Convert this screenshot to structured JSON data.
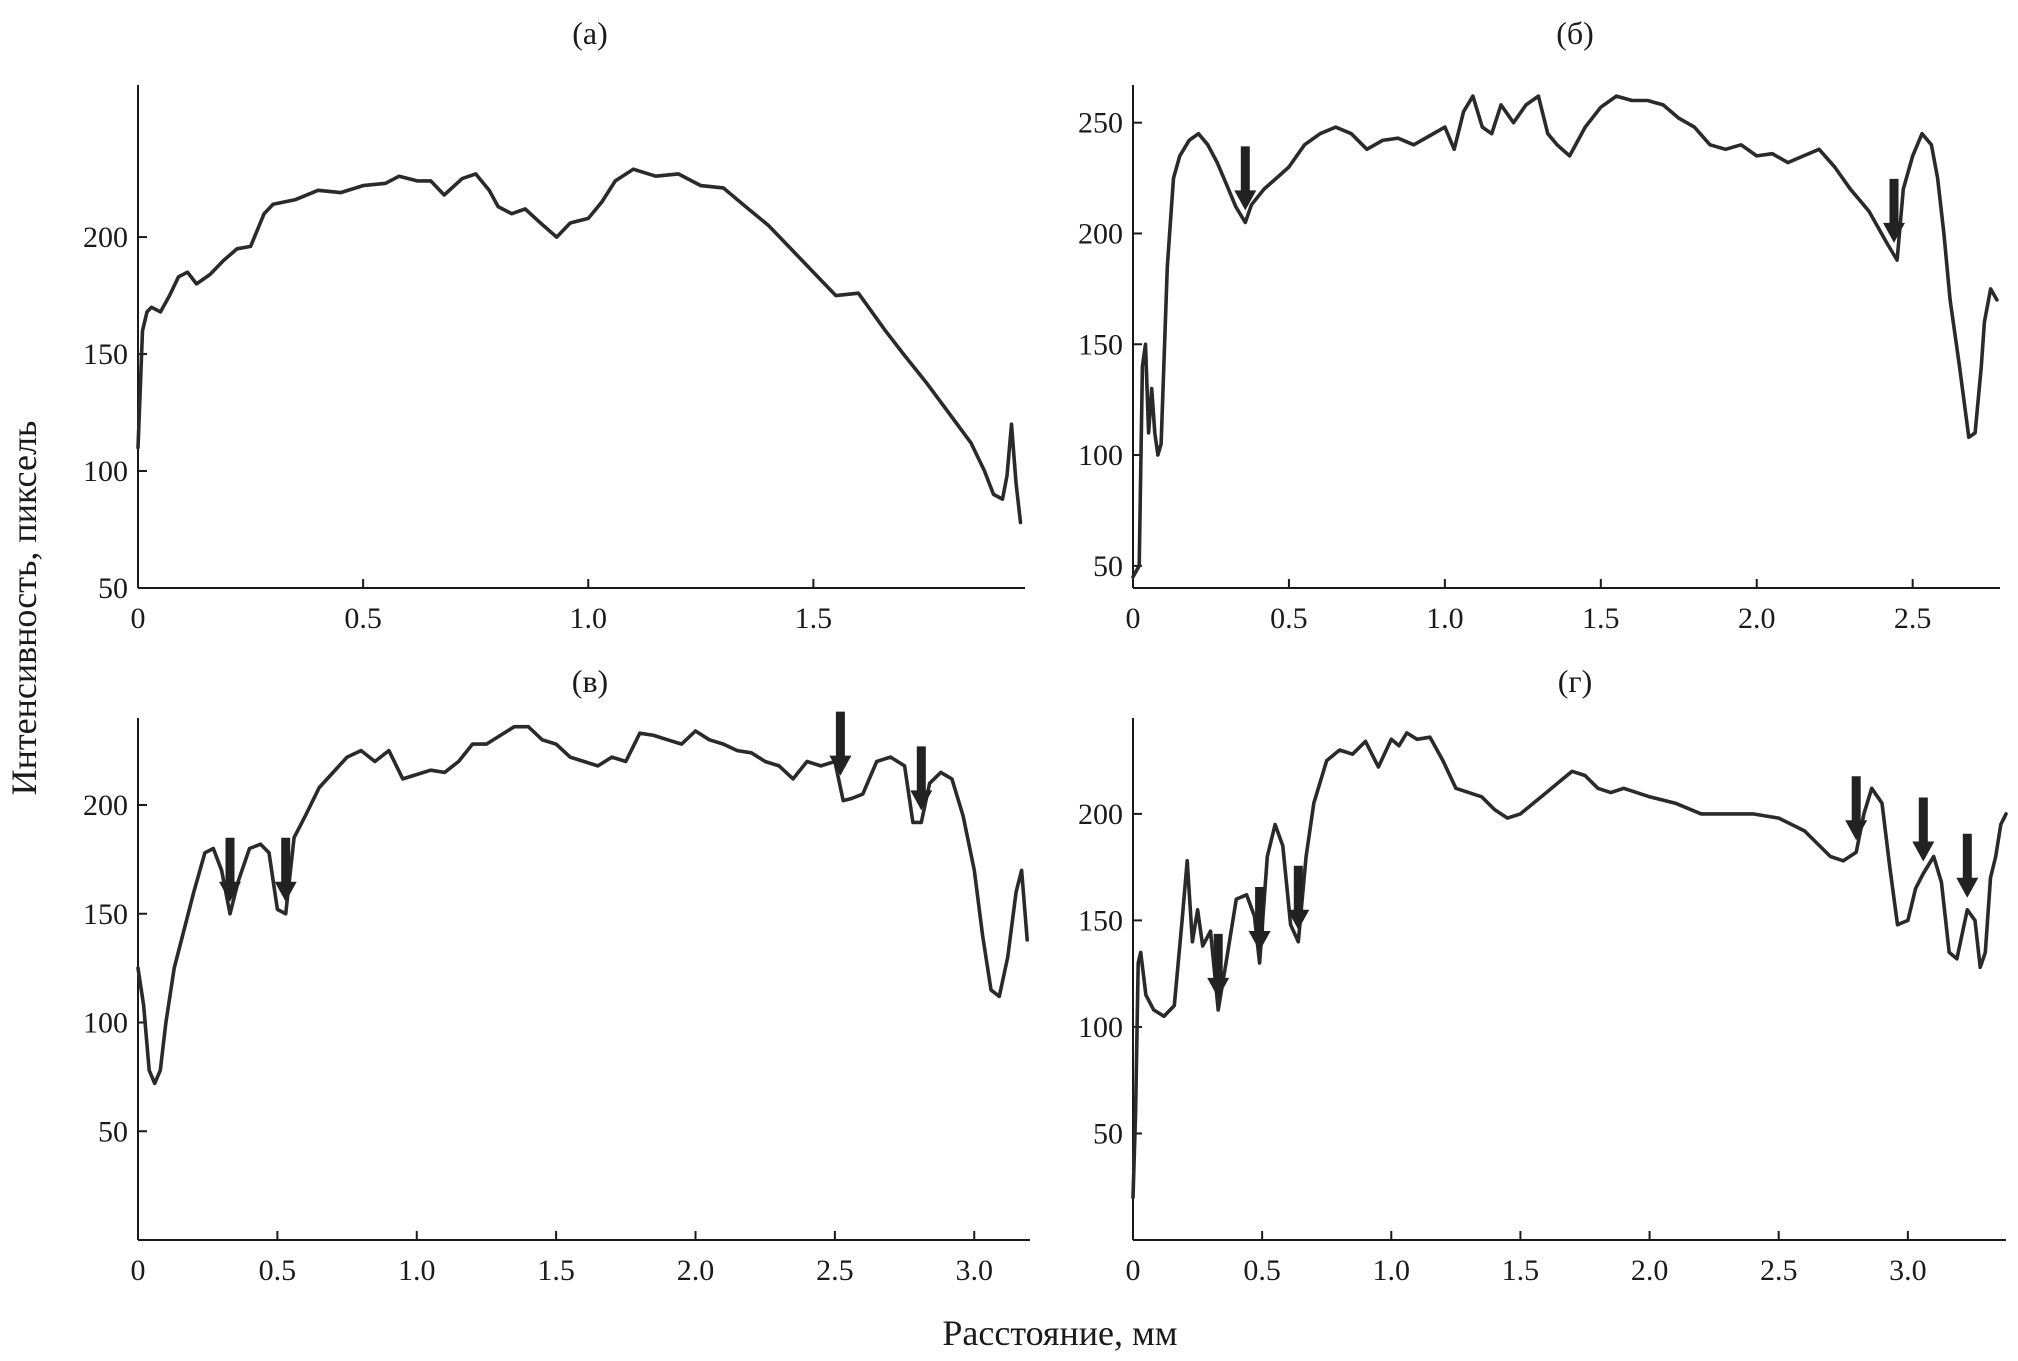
{
  "figure": {
    "ylabel": "Интенсивность, пиксель",
    "xlabel": "Расстояние, мм"
  },
  "chart_data": [
    {
      "type": "line",
      "title": "(а)",
      "xlim": [
        0,
        1.97
      ],
      "ylim": [
        50,
        265
      ],
      "x_ticks": [
        0,
        0.5,
        1.0,
        1.5
      ],
      "x_tick_labels": [
        "0",
        "0.5",
        "1.0",
        "1.5"
      ],
      "y_ticks": [
        50,
        100,
        150,
        200
      ],
      "y_tick_labels": [
        "50",
        "100",
        "150",
        "200"
      ],
      "arrows_x": [],
      "series": [
        {
          "x": [
            0,
            0.01,
            0.02,
            0.03,
            0.05,
            0.07,
            0.09,
            0.11,
            0.13,
            0.16,
            0.19,
            0.22,
            0.25,
            0.28,
            0.3,
            0.35,
            0.4,
            0.45,
            0.5,
            0.55,
            0.58,
            0.62,
            0.65,
            0.68,
            0.72,
            0.75,
            0.78,
            0.8,
            0.83,
            0.86,
            0.9,
            0.93,
            0.96,
            1.0,
            1.03,
            1.06,
            1.1,
            1.15,
            1.2,
            1.25,
            1.3,
            1.35,
            1.4,
            1.45,
            1.5,
            1.55,
            1.6,
            1.63,
            1.66,
            1.7,
            1.75,
            1.8,
            1.85,
            1.88,
            1.9,
            1.92,
            1.93,
            1.94,
            1.95,
            1.96
          ],
          "y": [
            110,
            160,
            168,
            170,
            168,
            175,
            183,
            185,
            180,
            184,
            190,
            195,
            196,
            210,
            214,
            216,
            220,
            219,
            222,
            223,
            226,
            224,
            224,
            218,
            225,
            227,
            220,
            213,
            210,
            212,
            205,
            200,
            206,
            208,
            215,
            224,
            229,
            226,
            227,
            222,
            221,
            213,
            205,
            195,
            185,
            175,
            176,
            168,
            160,
            150,
            138,
            125,
            112,
            100,
            90,
            88,
            98,
            120,
            95,
            78
          ]
        }
      ]
    },
    {
      "type": "line",
      "title": "(б)",
      "xlim": [
        0,
        2.78
      ],
      "ylim": [
        40,
        267
      ],
      "x_ticks": [
        0,
        0.5,
        1.0,
        1.5,
        2.0,
        2.5
      ],
      "x_tick_labels": [
        "0",
        "0.5",
        "1.0",
        "1.5",
        "2.0",
        "2.5"
      ],
      "y_ticks": [
        50,
        100,
        150,
        200,
        250
      ],
      "y_tick_labels": [
        "50",
        "100",
        "150",
        "200",
        "250"
      ],
      "arrows_x": [
        0.36,
        2.44
      ],
      "series": [
        {
          "x": [
            0,
            0.02,
            0.03,
            0.04,
            0.05,
            0.06,
            0.07,
            0.08,
            0.09,
            0.1,
            0.11,
            0.13,
            0.15,
            0.18,
            0.21,
            0.24,
            0.27,
            0.3,
            0.33,
            0.36,
            0.38,
            0.42,
            0.46,
            0.5,
            0.55,
            0.6,
            0.65,
            0.7,
            0.75,
            0.8,
            0.85,
            0.9,
            0.95,
            1.0,
            1.03,
            1.06,
            1.09,
            1.12,
            1.15,
            1.18,
            1.22,
            1.26,
            1.3,
            1.33,
            1.36,
            1.4,
            1.45,
            1.5,
            1.55,
            1.6,
            1.65,
            1.7,
            1.75,
            1.8,
            1.85,
            1.9,
            1.95,
            2.0,
            2.05,
            2.1,
            2.15,
            2.2,
            2.25,
            2.3,
            2.33,
            2.36,
            2.4,
            2.42,
            2.45,
            2.47,
            2.5,
            2.53,
            2.56,
            2.58,
            2.6,
            2.62,
            2.65,
            2.68,
            2.7,
            2.72,
            2.73,
            2.75,
            2.77
          ],
          "y": [
            45,
            50,
            140,
            150,
            110,
            130,
            110,
            100,
            105,
            145,
            185,
            225,
            235,
            242,
            245,
            240,
            232,
            222,
            212,
            205,
            213,
            220,
            225,
            230,
            240,
            245,
            248,
            245,
            238,
            242,
            243,
            240,
            244,
            248,
            238,
            255,
            262,
            248,
            245,
            258,
            250,
            258,
            262,
            245,
            240,
            235,
            248,
            257,
            262,
            260,
            260,
            258,
            252,
            248,
            240,
            238,
            240,
            235,
            236,
            232,
            235,
            238,
            230,
            220,
            215,
            210,
            200,
            195,
            188,
            220,
            235,
            245,
            240,
            225,
            200,
            170,
            140,
            108,
            110,
            140,
            160,
            175,
            170
          ]
        }
      ]
    },
    {
      "type": "line",
      "title": "(в)",
      "xlim": [
        0,
        3.2
      ],
      "ylim": [
        0,
        240
      ],
      "x_ticks": [
        0,
        0.5,
        1.0,
        1.5,
        2.0,
        2.5,
        3.0
      ],
      "x_tick_labels": [
        "0",
        "0.5",
        "1.0",
        "1.5",
        "2.0",
        "2.5",
        "3.0"
      ],
      "y_ticks": [
        50,
        100,
        150,
        200
      ],
      "y_tick_labels": [
        "50",
        "100",
        "150",
        "200"
      ],
      "arrows_x": [
        0.33,
        0.53,
        2.52,
        2.81
      ],
      "series": [
        {
          "x": [
            0,
            0.02,
            0.04,
            0.06,
            0.08,
            0.1,
            0.13,
            0.16,
            0.2,
            0.24,
            0.27,
            0.3,
            0.33,
            0.36,
            0.4,
            0.44,
            0.47,
            0.5,
            0.53,
            0.56,
            0.6,
            0.65,
            0.7,
            0.75,
            0.8,
            0.85,
            0.9,
            0.95,
            1.0,
            1.05,
            1.1,
            1.15,
            1.2,
            1.25,
            1.3,
            1.35,
            1.4,
            1.45,
            1.5,
            1.55,
            1.6,
            1.65,
            1.7,
            1.75,
            1.8,
            1.85,
            1.9,
            1.95,
            2.0,
            2.05,
            2.1,
            2.15,
            2.2,
            2.25,
            2.3,
            2.35,
            2.4,
            2.45,
            2.5,
            2.53,
            2.56,
            2.6,
            2.65,
            2.7,
            2.75,
            2.78,
            2.81,
            2.84,
            2.88,
            2.92,
            2.96,
            3.0,
            3.03,
            3.06,
            3.09,
            3.12,
            3.15,
            3.17,
            3.19
          ],
          "y": [
            125,
            108,
            78,
            72,
            78,
            100,
            125,
            140,
            160,
            178,
            180,
            170,
            150,
            165,
            180,
            182,
            178,
            152,
            150,
            185,
            195,
            208,
            215,
            222,
            225,
            220,
            225,
            212,
            214,
            216,
            215,
            220,
            228,
            228,
            232,
            236,
            236,
            230,
            228,
            222,
            220,
            218,
            222,
            220,
            233,
            232,
            230,
            228,
            234,
            230,
            228,
            225,
            224,
            220,
            218,
            212,
            220,
            218,
            220,
            202,
            203,
            205,
            220,
            222,
            218,
            192,
            192,
            210,
            215,
            212,
            195,
            170,
            140,
            115,
            112,
            130,
            160,
            170,
            138
          ]
        }
      ]
    },
    {
      "type": "line",
      "title": "(г)",
      "xlim": [
        0,
        3.38
      ],
      "ylim": [
        0,
        245
      ],
      "x_ticks": [
        0,
        0.5,
        1.0,
        1.5,
        2.0,
        2.5,
        3.0
      ],
      "x_tick_labels": [
        "0",
        "0.5",
        "1.0",
        "1.5",
        "2.0",
        "2.5",
        "3.0"
      ],
      "y_ticks": [
        50,
        100,
        150,
        200
      ],
      "y_tick_labels": [
        "50",
        "100",
        "150",
        "200"
      ],
      "arrows_x": [
        0.33,
        0.49,
        0.64,
        2.8,
        3.06,
        3.23
      ],
      "series": [
        {
          "x": [
            0,
            0.01,
            0.02,
            0.03,
            0.05,
            0.08,
            0.12,
            0.16,
            0.19,
            0.21,
            0.23,
            0.25,
            0.27,
            0.3,
            0.33,
            0.36,
            0.4,
            0.44,
            0.47,
            0.49,
            0.52,
            0.55,
            0.58,
            0.61,
            0.64,
            0.67,
            0.7,
            0.75,
            0.8,
            0.85,
            0.9,
            0.95,
            1.0,
            1.03,
            1.06,
            1.1,
            1.15,
            1.2,
            1.25,
            1.3,
            1.35,
            1.4,
            1.45,
            1.5,
            1.55,
            1.6,
            1.65,
            1.7,
            1.75,
            1.8,
            1.85,
            1.9,
            1.95,
            2.0,
            2.1,
            2.2,
            2.3,
            2.4,
            2.5,
            2.6,
            2.7,
            2.75,
            2.8,
            2.83,
            2.86,
            2.9,
            2.93,
            2.96,
            3.0,
            3.03,
            3.06,
            3.1,
            3.13,
            3.16,
            3.19,
            3.23,
            3.26,
            3.28,
            3.3,
            3.32,
            3.34,
            3.36,
            3.38
          ],
          "y": [
            20,
            60,
            130,
            135,
            115,
            108,
            105,
            110,
            150,
            178,
            140,
            155,
            138,
            145,
            108,
            130,
            160,
            162,
            152,
            130,
            180,
            195,
            185,
            148,
            140,
            180,
            205,
            225,
            230,
            228,
            234,
            222,
            235,
            232,
            238,
            235,
            236,
            225,
            212,
            210,
            208,
            202,
            198,
            200,
            205,
            210,
            215,
            220,
            218,
            212,
            210,
            212,
            210,
            208,
            205,
            200,
            200,
            200,
            198,
            192,
            180,
            178,
            182,
            200,
            212,
            205,
            175,
            148,
            150,
            165,
            172,
            180,
            168,
            135,
            132,
            155,
            150,
            128,
            135,
            170,
            180,
            195,
            200
          ]
        }
      ]
    }
  ]
}
